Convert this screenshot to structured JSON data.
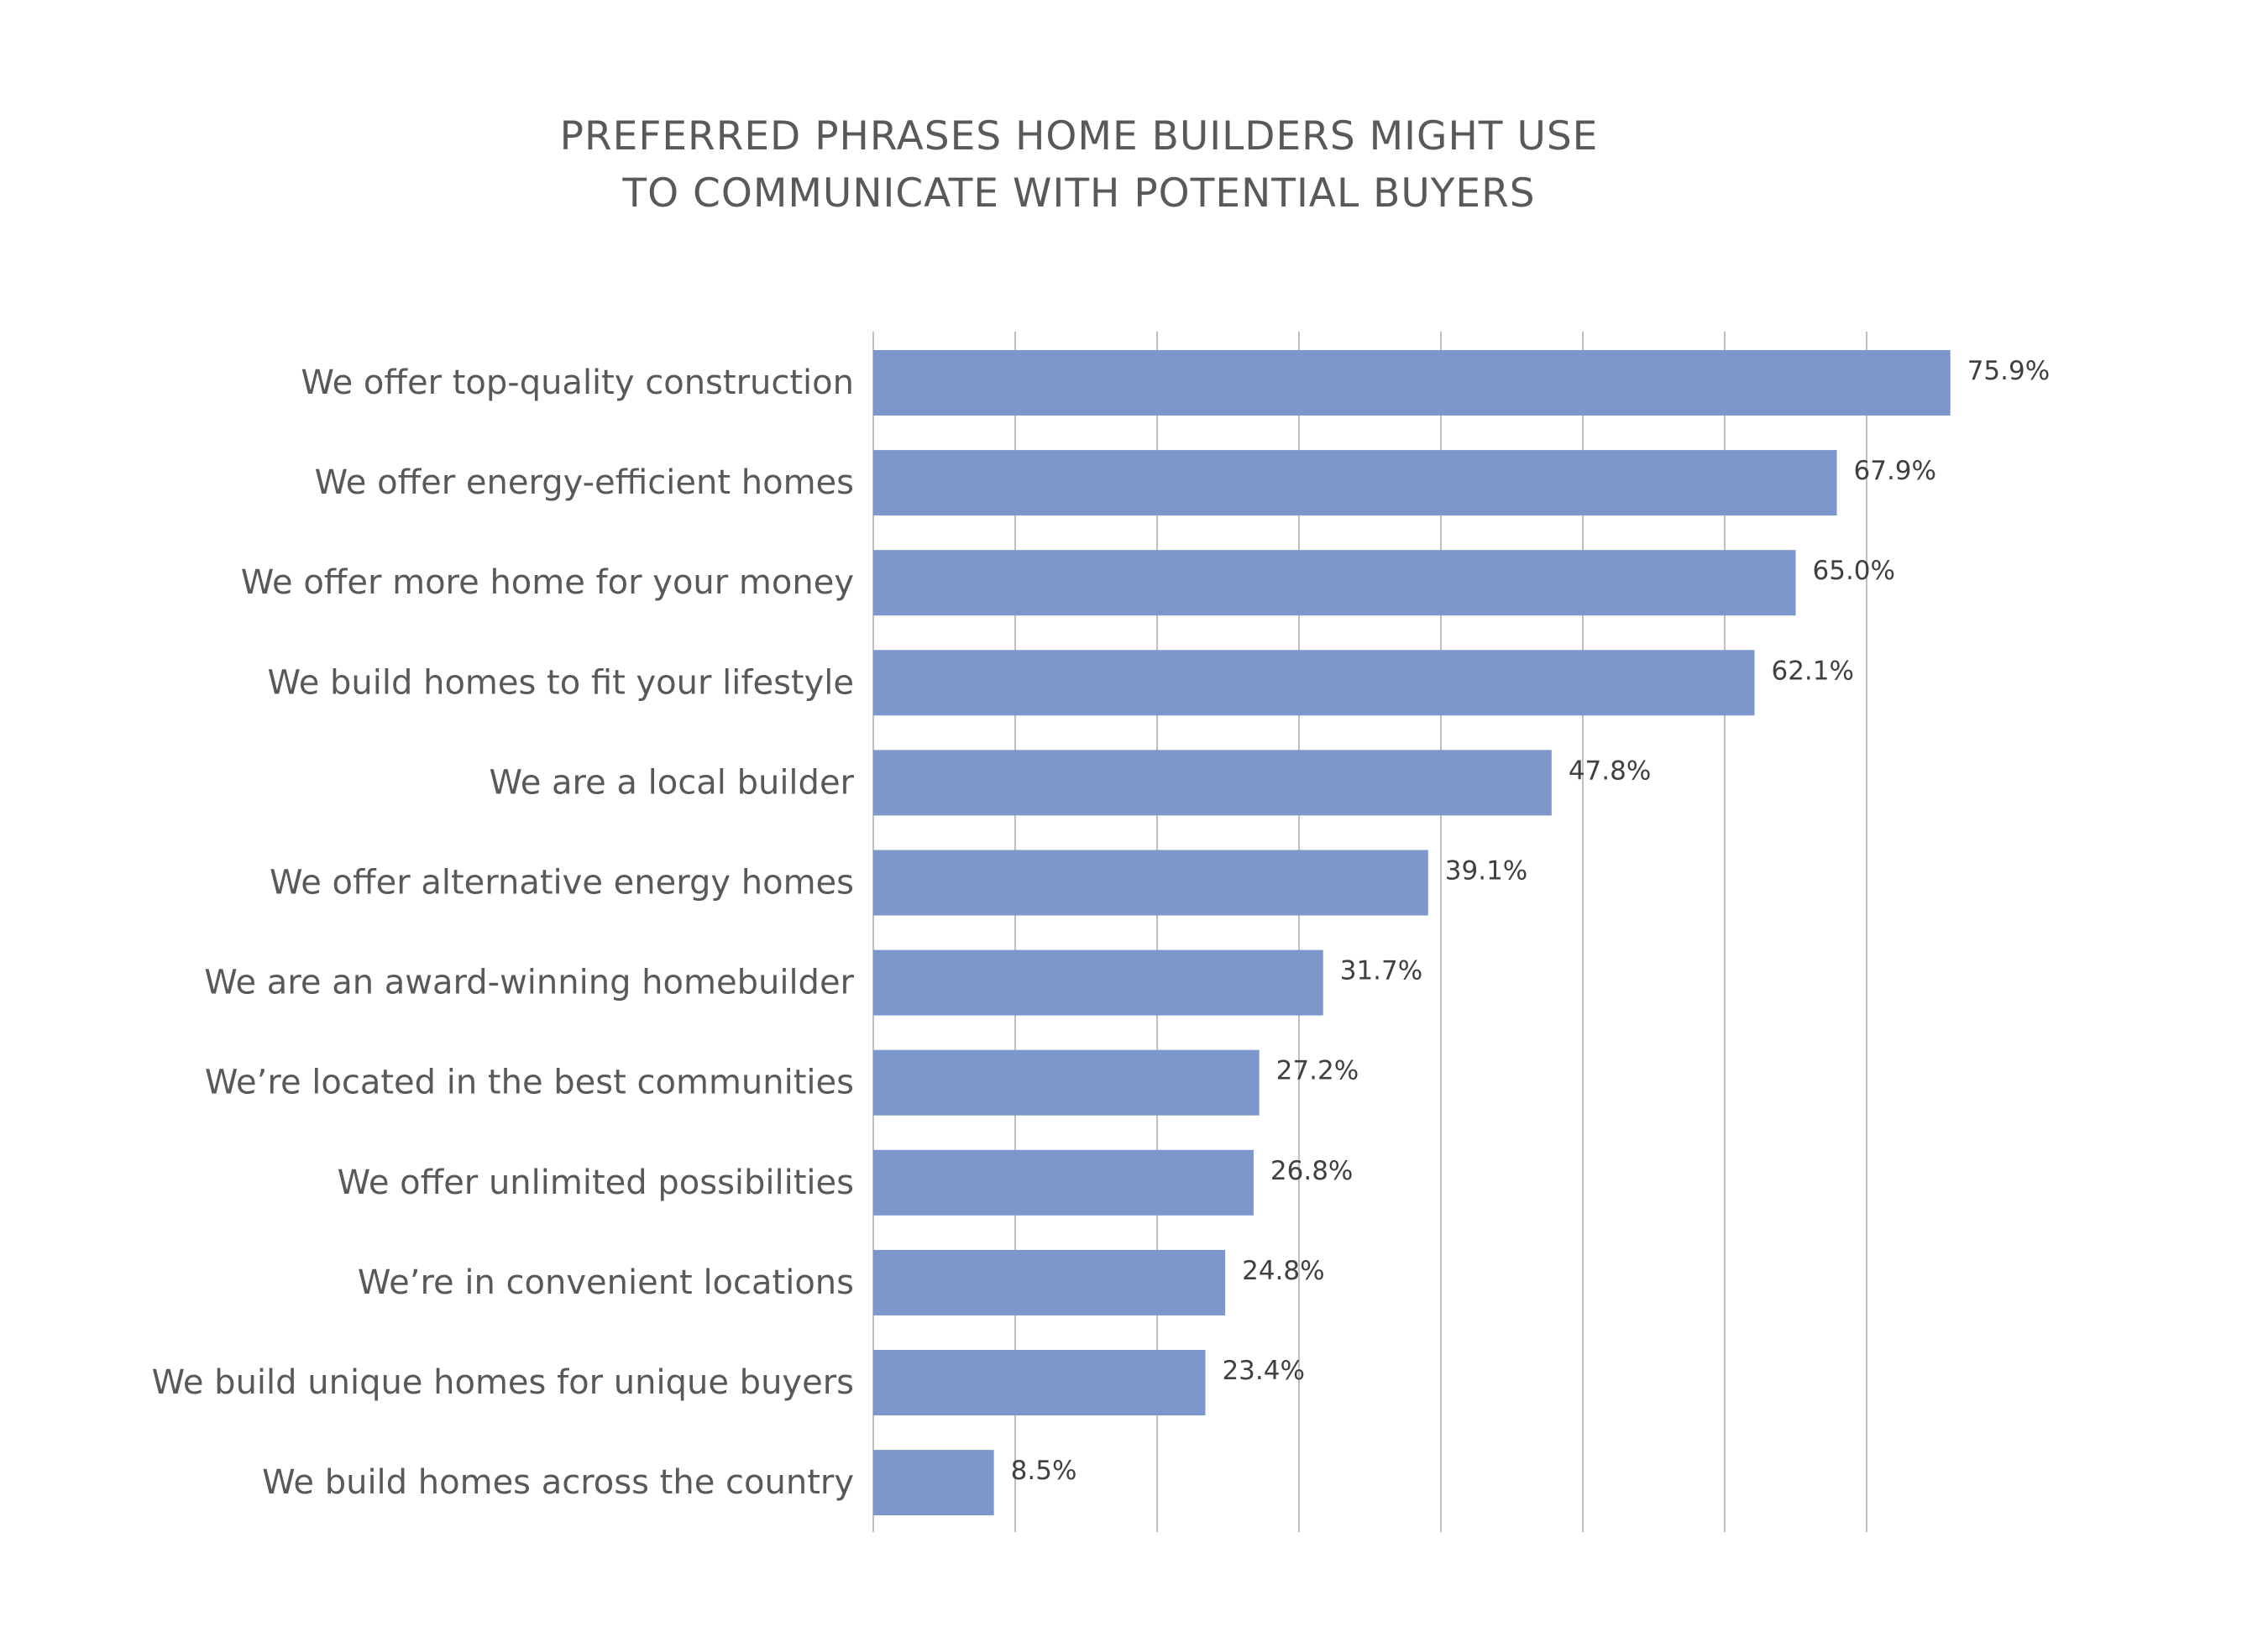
{
  "chart_data": {
    "type": "bar",
    "orientation": "horizontal",
    "title_lines": [
      "PREFERRED PHRASES HOME BUILDERS MIGHT USE",
      "TO COMMUNICATE WITH POTENTIAL BUYERS"
    ],
    "categories": [
      "We offer top-quality construction",
      "We offer energy-efficient homes",
      "We offer more home for your money",
      "We build homes to fit your lifestyle",
      "We are a local builder",
      "We offer alternative energy homes",
      "We are an award-winning homebuilder",
      "We’re located in the best communities",
      "We offer unlimited possibilities",
      "We’re in convenient locations",
      "We build unique homes for unique buyers",
      "We build homes across the country"
    ],
    "values": [
      75.9,
      67.9,
      65.0,
      62.1,
      47.8,
      39.1,
      31.7,
      27.2,
      26.8,
      24.8,
      23.4,
      8.5
    ],
    "value_labels": [
      "75.9%",
      "67.9%",
      "65.0%",
      "62.1%",
      "47.8%",
      "39.1%",
      "31.7%",
      "27.2%",
      "26.8%",
      "24.8%",
      "23.4%",
      "8.5%"
    ],
    "xlim": [
      0,
      80
    ],
    "x_gridline_step": 10,
    "grid": true,
    "axis_tick_labels_shown": false,
    "legend": "none",
    "bar_color": "#7d96cc",
    "gridline_color": "#bfbfbf",
    "text_color": "#595959",
    "data_label_color": "#404040"
  }
}
